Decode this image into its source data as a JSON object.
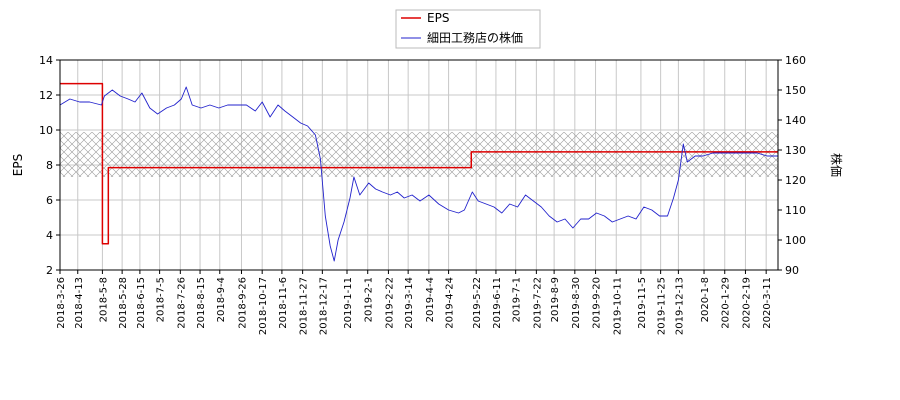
{
  "chart_data": {
    "type": "line",
    "legend": {
      "placement": "top-center",
      "entries": [
        "EPS",
        "細田工務店の株価"
      ]
    },
    "grid": true,
    "left_axis": {
      "label": "EPS",
      "range": [
        2,
        14
      ],
      "ticks": [
        2,
        4,
        6,
        8,
        10,
        12,
        14
      ]
    },
    "right_axis": {
      "label": "株価",
      "range": [
        90,
        160
      ],
      "ticks": [
        90,
        100,
        110,
        120,
        130,
        140,
        150,
        160
      ]
    },
    "x_axis": {
      "range": [
        "2018-03-26",
        "2020-03-23"
      ],
      "ticks": [
        "2018-3-26",
        "2018-4-13",
        "2018-5-8",
        "2018-5-28",
        "2018-6-15",
        "2018-7-5",
        "2018-7-26",
        "2018-8-15",
        "2018-9-4",
        "2018-9-26",
        "2018-10-17",
        "2018-11-6",
        "2018-11-27",
        "2018-12-17",
        "2019-1-11",
        "2019-2-1",
        "2019-2-22",
        "2019-3-14",
        "2019-4-4",
        "2019-4-24",
        "2019-5-22",
        "2019-6-11",
        "2019-7-1",
        "2019-7-22",
        "2019-8-9",
        "2019-8-30",
        "2019-9-20",
        "2019-10-11",
        "2019-11-5",
        "2019-11-25",
        "2019-12-13",
        "2020-1-8",
        "2020-1-29",
        "2020-2-19",
        "2020-3-11"
      ]
    },
    "band": {
      "axis": "right",
      "range": [
        121,
        136
      ]
    },
    "series": [
      {
        "name": "EPS",
        "axis": "left",
        "color": "#dd0000",
        "step": true,
        "x": [
          "2018-03-26",
          "2018-05-08",
          "2018-05-14",
          "2019-05-16",
          "2019-05-17",
          "2020-03-23"
        ],
        "y": [
          12.65,
          3.5,
          7.85,
          7.85,
          8.75,
          8.75
        ]
      },
      {
        "name": "細田工務店の株価",
        "axis": "right",
        "color": "#2222cc",
        "x": [
          "2018-03-26",
          "2018-04-05",
          "2018-04-15",
          "2018-04-25",
          "2018-05-07",
          "2018-05-10",
          "2018-05-18",
          "2018-05-26",
          "2018-06-03",
          "2018-06-10",
          "2018-06-17",
          "2018-06-25",
          "2018-07-03",
          "2018-07-12",
          "2018-07-20",
          "2018-07-27",
          "2018-08-01",
          "2018-08-07",
          "2018-08-16",
          "2018-08-25",
          "2018-09-03",
          "2018-09-12",
          "2018-09-22",
          "2018-10-01",
          "2018-10-10",
          "2018-10-17",
          "2018-10-25",
          "2018-11-02",
          "2018-11-09",
          "2018-11-17",
          "2018-11-25",
          "2018-12-02",
          "2018-12-10",
          "2018-12-15",
          "2018-12-20",
          "2018-12-25",
          "2018-12-29",
          "2019-01-02",
          "2019-01-08",
          "2019-01-14",
          "2019-01-18",
          "2019-01-24",
          "2019-02-02",
          "2019-02-09",
          "2019-02-16",
          "2019-02-24",
          "2019-03-03",
          "2019-03-10",
          "2019-03-18",
          "2019-03-26",
          "2019-04-04",
          "2019-04-14",
          "2019-04-24",
          "2019-05-04",
          "2019-05-10",
          "2019-05-18",
          "2019-05-24",
          "2019-06-01",
          "2019-06-09",
          "2019-06-17",
          "2019-06-25",
          "2019-07-03",
          "2019-07-11",
          "2019-07-19",
          "2019-07-27",
          "2019-08-04",
          "2019-08-12",
          "2019-08-20",
          "2019-08-28",
          "2019-09-05",
          "2019-09-13",
          "2019-09-21",
          "2019-09-29",
          "2019-10-07",
          "2019-10-15",
          "2019-10-23",
          "2019-10-31",
          "2019-11-08",
          "2019-11-16",
          "2019-11-24",
          "2019-12-02",
          "2019-12-08",
          "2019-12-13",
          "2019-12-18",
          "2019-12-22",
          "2019-12-30",
          "2020-01-07",
          "2020-01-17",
          "2020-01-27",
          "2020-02-08",
          "2020-02-20",
          "2020-03-02",
          "2020-03-12",
          "2020-03-23"
        ],
        "y": [
          145,
          147,
          146,
          146,
          145,
          148,
          150,
          148,
          147,
          146,
          149,
          144,
          142,
          144,
          145,
          147,
          151,
          145,
          144,
          145,
          144,
          145,
          145,
          145,
          143,
          146,
          141,
          145,
          143,
          141,
          139,
          138,
          135,
          127,
          108,
          98,
          93,
          100,
          106,
          114,
          121,
          115,
          119,
          117,
          116,
          115,
          116,
          114,
          115,
          113,
          115,
          112,
          110,
          109,
          110,
          116,
          113,
          112,
          111,
          109,
          112,
          111,
          115,
          113,
          111,
          108,
          106,
          107,
          104,
          107,
          107,
          109,
          108,
          106,
          107,
          108,
          107,
          111,
          110,
          108,
          108,
          114,
          120,
          132,
          126,
          128,
          128,
          129,
          129,
          129,
          129,
          129,
          128,
          128
        ]
      }
    ]
  }
}
